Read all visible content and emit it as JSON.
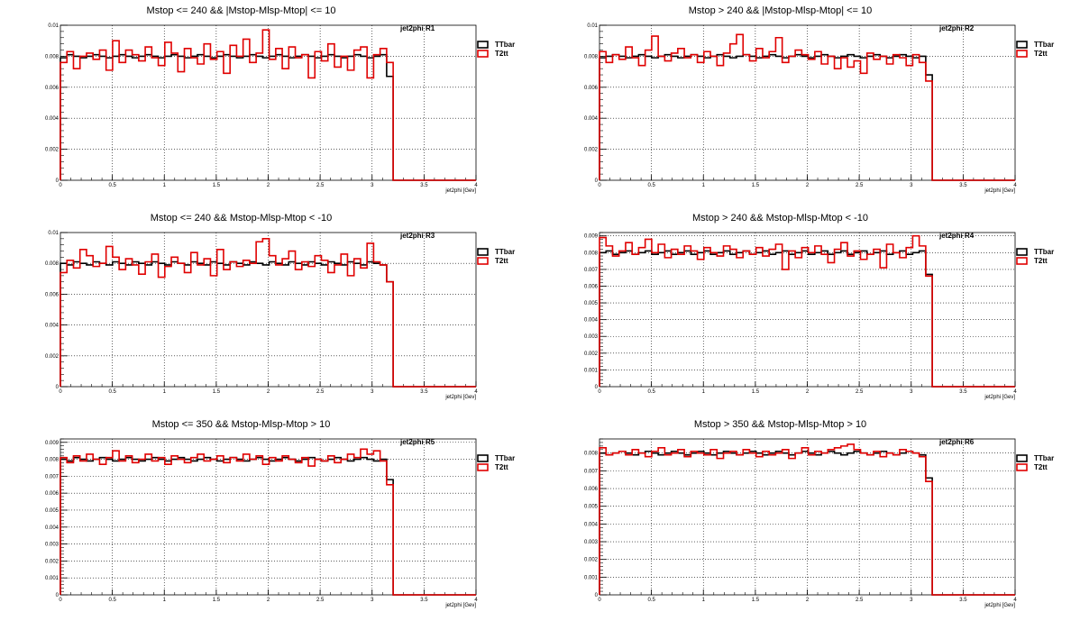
{
  "chart_data": [
    {
      "type": "line",
      "title": "Mstop <= 240 && |Mstop-Mlsp-Mtop| <= 10",
      "stat_label": "jet2phi  R1",
      "xlabel": "jet2phi [Gev]",
      "xlim": [
        0,
        4
      ],
      "ylim": [
        0,
        0.01
      ],
      "x_ticks": [
        "0",
        "0.5",
        "1",
        "1.5",
        "2",
        "2.5",
        "3",
        "3.5",
        "4"
      ],
      "y_ticks": [
        "0",
        "0.002",
        "0.004",
        "0.006",
        "0.008",
        "0.01"
      ],
      "bin_width": 0.0628,
      "grid": true,
      "legend_position": "top-right",
      "series": [
        {
          "name": "TTbar",
          "color": "#000000",
          "values": [
            0.0079,
            0.0081,
            0.008,
            0.0079,
            0.008,
            0.0081,
            0.008,
            0.0079,
            0.008,
            0.0081,
            0.008,
            0.0079,
            0.008,
            0.0081,
            0.008,
            0.0079,
            0.008,
            0.0081,
            0.008,
            0.0079,
            0.008,
            0.0081,
            0.008,
            0.0079,
            0.008,
            0.0081,
            0.008,
            0.0079,
            0.008,
            0.0081,
            0.008,
            0.0079,
            0.008,
            0.0081,
            0.008,
            0.0079,
            0.008,
            0.0081,
            0.008,
            0.0079,
            0.008,
            0.0081,
            0.008,
            0.0079,
            0.008,
            0.0081,
            0.008,
            0.0079,
            0.008,
            0.0081,
            0.0067
          ]
        },
        {
          "name": "T2tt",
          "color": "#e00000",
          "values": [
            0.0076,
            0.0083,
            0.0072,
            0.008,
            0.0082,
            0.0078,
            0.0084,
            0.0071,
            0.009,
            0.0076,
            0.0084,
            0.0081,
            0.0077,
            0.0086,
            0.0079,
            0.0074,
            0.0089,
            0.0082,
            0.007,
            0.0085,
            0.0079,
            0.0075,
            0.0088,
            0.0078,
            0.0083,
            0.0069,
            0.0087,
            0.008,
            0.0091,
            0.0076,
            0.0082,
            0.0097,
            0.0078,
            0.0085,
            0.0072,
            0.0086,
            0.0079,
            0.0081,
            0.0066,
            0.0083,
            0.0077,
            0.0088,
            0.0073,
            0.008,
            0.0071,
            0.0084,
            0.0086,
            0.0066,
            0.0081,
            0.0085,
            0.0076
          ]
        }
      ]
    },
    {
      "type": "line",
      "title": "Mstop > 240 && |Mstop-Mlsp-Mtop| <= 10",
      "stat_label": "jet2phi  R2",
      "xlabel": "jet2phi [Gev]",
      "xlim": [
        0,
        4
      ],
      "ylim": [
        0,
        0.01
      ],
      "x_ticks": [
        "0",
        "0.5",
        "1",
        "1.5",
        "2",
        "2.5",
        "3",
        "3.5",
        "4"
      ],
      "y_ticks": [
        "0",
        "0.002",
        "0.004",
        "0.006",
        "0.008",
        "0.01"
      ],
      "bin_width": 0.0628,
      "grid": true,
      "legend_position": "top-right",
      "series": [
        {
          "name": "TTbar",
          "color": "#000000",
          "values": [
            0.0079,
            0.008,
            0.0081,
            0.008,
            0.0079,
            0.008,
            0.0081,
            0.008,
            0.0079,
            0.008,
            0.0081,
            0.008,
            0.0079,
            0.008,
            0.0081,
            0.008,
            0.0079,
            0.008,
            0.0081,
            0.008,
            0.0079,
            0.008,
            0.0081,
            0.008,
            0.0079,
            0.008,
            0.0081,
            0.008,
            0.0079,
            0.008,
            0.0081,
            0.008,
            0.0079,
            0.008,
            0.0081,
            0.008,
            0.0079,
            0.008,
            0.0081,
            0.008,
            0.0079,
            0.008,
            0.0081,
            0.008,
            0.0079,
            0.008,
            0.0081,
            0.008,
            0.0079,
            0.008,
            0.0068
          ]
        },
        {
          "name": "T2tt",
          "color": "#e00000",
          "values": [
            0.0083,
            0.0076,
            0.0081,
            0.0078,
            0.0086,
            0.0079,
            0.0074,
            0.0084,
            0.0093,
            0.008,
            0.0077,
            0.0082,
            0.0085,
            0.0079,
            0.0081,
            0.0076,
            0.0083,
            0.008,
            0.0074,
            0.0082,
            0.0088,
            0.0094,
            0.0081,
            0.0077,
            0.0085,
            0.0079,
            0.0083,
            0.0092,
            0.0076,
            0.008,
            0.0084,
            0.0081,
            0.0078,
            0.0083,
            0.0075,
            0.008,
            0.0072,
            0.0079,
            0.0073,
            0.0077,
            0.0069,
            0.0082,
            0.0078,
            0.008,
            0.0075,
            0.0081,
            0.0079,
            0.0074,
            0.0081,
            0.0076,
            0.0064
          ]
        }
      ]
    },
    {
      "type": "line",
      "title": "Mstop <= 240 && Mstop-Mlsp-Mtop < -10",
      "stat_label": "jet2phi  R3",
      "xlabel": "jet2phi [Gev]",
      "xlim": [
        0,
        4
      ],
      "ylim": [
        0,
        0.01
      ],
      "x_ticks": [
        "0",
        "0.5",
        "1",
        "1.5",
        "2",
        "2.5",
        "3",
        "3.5",
        "4"
      ],
      "y_ticks": [
        "0",
        "0.002",
        "0.004",
        "0.006",
        "0.008",
        "0.01"
      ],
      "bin_width": 0.0628,
      "grid": true,
      "legend_position": "top-right",
      "series": [
        {
          "name": "TTbar",
          "color": "#000000",
          "values": [
            0.008,
            0.0079,
            0.0081,
            0.008,
            0.0079,
            0.0081,
            0.008,
            0.0079,
            0.0081,
            0.008,
            0.0079,
            0.0081,
            0.008,
            0.0079,
            0.0081,
            0.008,
            0.0079,
            0.0081,
            0.008,
            0.0079,
            0.0081,
            0.008,
            0.0079,
            0.0081,
            0.008,
            0.0079,
            0.0081,
            0.008,
            0.0079,
            0.0081,
            0.008,
            0.0079,
            0.0081,
            0.008,
            0.0079,
            0.0081,
            0.008,
            0.0079,
            0.0081,
            0.008,
            0.0079,
            0.0081,
            0.008,
            0.0079,
            0.0081,
            0.008,
            0.0079,
            0.0081,
            0.008,
            0.0079,
            0.0068
          ]
        },
        {
          "name": "T2tt",
          "color": "#e00000",
          "values": [
            0.0074,
            0.0082,
            0.0077,
            0.0089,
            0.0085,
            0.0078,
            0.008,
            0.0091,
            0.0084,
            0.0076,
            0.0083,
            0.0079,
            0.0073,
            0.0081,
            0.0086,
            0.0071,
            0.0078,
            0.0084,
            0.008,
            0.0074,
            0.0087,
            0.0079,
            0.0083,
            0.0072,
            0.0089,
            0.0076,
            0.0081,
            0.0078,
            0.0082,
            0.008,
            0.0094,
            0.0096,
            0.0085,
            0.0079,
            0.0083,
            0.0088,
            0.0076,
            0.0081,
            0.0078,
            0.0085,
            0.0082,
            0.0074,
            0.0079,
            0.0086,
            0.0072,
            0.0083,
            0.0077,
            0.0093,
            0.0081,
            0.0079,
            0.0068
          ]
        }
      ]
    },
    {
      "type": "line",
      "title": "Mstop > 240 && Mstop-Mlsp-Mtop < -10",
      "stat_label": "jet2phi  R4",
      "xlabel": "jet2phi [Gev]",
      "xlim": [
        0,
        4
      ],
      "ylim": [
        0,
        0.0092
      ],
      "x_ticks": [
        "0",
        "0.5",
        "1",
        "1.5",
        "2",
        "2.5",
        "3",
        "3.5",
        "4"
      ],
      "y_ticks": [
        "0",
        "0.001",
        "0.002",
        "0.003",
        "0.004",
        "0.005",
        "0.006",
        "0.007",
        "0.008",
        "0.009"
      ],
      "bin_width": 0.0628,
      "grid": true,
      "legend_position": "top-right",
      "series": [
        {
          "name": "TTbar",
          "color": "#000000",
          "values": [
            0.008,
            0.0081,
            0.0079,
            0.008,
            0.0081,
            0.0079,
            0.008,
            0.0081,
            0.0079,
            0.008,
            0.0081,
            0.0079,
            0.008,
            0.0081,
            0.0079,
            0.008,
            0.0081,
            0.0079,
            0.008,
            0.0081,
            0.0079,
            0.008,
            0.0081,
            0.0079,
            0.008,
            0.0081,
            0.0079,
            0.008,
            0.0081,
            0.0079,
            0.008,
            0.0081,
            0.0079,
            0.008,
            0.0081,
            0.0079,
            0.008,
            0.0081,
            0.0079,
            0.008,
            0.0081,
            0.0079,
            0.008,
            0.0081,
            0.0079,
            0.008,
            0.0081,
            0.0079,
            0.008,
            0.0081,
            0.0067
          ]
        },
        {
          "name": "T2tt",
          "color": "#e00000",
          "values": [
            0.0089,
            0.0084,
            0.0078,
            0.0081,
            0.0086,
            0.0079,
            0.0083,
            0.0088,
            0.008,
            0.0085,
            0.0077,
            0.0082,
            0.0079,
            0.0084,
            0.0081,
            0.0076,
            0.0083,
            0.008,
            0.0078,
            0.0084,
            0.0082,
            0.0077,
            0.0081,
            0.0079,
            0.0083,
            0.0078,
            0.0082,
            0.0085,
            0.007,
            0.0081,
            0.0077,
            0.0083,
            0.008,
            0.0084,
            0.0079,
            0.0074,
            0.0082,
            0.0086,
            0.0078,
            0.0081,
            0.0076,
            0.0079,
            0.0082,
            0.0071,
            0.0085,
            0.008,
            0.0077,
            0.0083,
            0.009,
            0.0084,
            0.0066
          ]
        }
      ]
    },
    {
      "type": "line",
      "title": "Mstop <= 350 && Mstop-Mlsp-Mtop > 10",
      "stat_label": "jet2phi  R5",
      "xlabel": "jet2phi [Gev]",
      "xlim": [
        0,
        4
      ],
      "ylim": [
        0,
        0.0092
      ],
      "x_ticks": [
        "0",
        "0.5",
        "1",
        "1.5",
        "2",
        "2.5",
        "3",
        "3.5",
        "4"
      ],
      "y_ticks": [
        "0",
        "0.001",
        "0.002",
        "0.003",
        "0.004",
        "0.005",
        "0.006",
        "0.007",
        "0.008",
        "0.009"
      ],
      "bin_width": 0.0628,
      "grid": true,
      "legend_position": "top-right",
      "series": [
        {
          "name": "TTbar",
          "color": "#000000",
          "values": [
            0.008,
            0.0079,
            0.0081,
            0.008,
            0.0079,
            0.008,
            0.0081,
            0.008,
            0.0079,
            0.008,
            0.0081,
            0.008,
            0.0079,
            0.008,
            0.0081,
            0.008,
            0.0079,
            0.008,
            0.0081,
            0.008,
            0.0079,
            0.008,
            0.0081,
            0.008,
            0.0079,
            0.008,
            0.0081,
            0.008,
            0.0079,
            0.008,
            0.0081,
            0.008,
            0.0079,
            0.008,
            0.0081,
            0.008,
            0.0079,
            0.008,
            0.0081,
            0.008,
            0.0079,
            0.008,
            0.0081,
            0.008,
            0.0079,
            0.008,
            0.0081,
            0.008,
            0.0079,
            0.008,
            0.0068
          ]
        },
        {
          "name": "T2tt",
          "color": "#e00000",
          "values": [
            0.0081,
            0.0078,
            0.0082,
            0.0079,
            0.0083,
            0.008,
            0.0077,
            0.0081,
            0.0085,
            0.0079,
            0.0082,
            0.0078,
            0.008,
            0.0083,
            0.0079,
            0.0081,
            0.0077,
            0.0082,
            0.008,
            0.0078,
            0.0081,
            0.0083,
            0.0079,
            0.008,
            0.0082,
            0.0078,
            0.0081,
            0.0079,
            0.0083,
            0.008,
            0.0082,
            0.0077,
            0.0081,
            0.0079,
            0.0082,
            0.008,
            0.0078,
            0.0081,
            0.0076,
            0.008,
            0.0079,
            0.0082,
            0.0078,
            0.008,
            0.0083,
            0.0081,
            0.0086,
            0.0083,
            0.0085,
            0.0079,
            0.0065
          ]
        }
      ]
    },
    {
      "type": "line",
      "title": "Mstop > 350 && Mstop-Mlsp-Mtop > 10",
      "stat_label": "jet2phi  R6",
      "xlabel": "jet2phi [Gev]",
      "xlim": [
        0,
        4
      ],
      "ylim": [
        0,
        0.0088
      ],
      "x_ticks": [
        "0",
        "0.5",
        "1",
        "1.5",
        "2",
        "2.5",
        "3",
        "3.5",
        "4"
      ],
      "y_ticks": [
        "0",
        "0.001",
        "0.002",
        "0.003",
        "0.004",
        "0.005",
        "0.006",
        "0.007",
        "0.008"
      ],
      "bin_width": 0.0628,
      "grid": true,
      "legend_position": "top-right",
      "series": [
        {
          "name": "TTbar",
          "color": "#000000",
          "values": [
            0.008,
            0.0079,
            0.008,
            0.0081,
            0.008,
            0.0079,
            0.008,
            0.0081,
            0.008,
            0.0079,
            0.008,
            0.0081,
            0.008,
            0.0079,
            0.008,
            0.0081,
            0.008,
            0.0079,
            0.008,
            0.0081,
            0.008,
            0.0079,
            0.008,
            0.0081,
            0.008,
            0.0079,
            0.008,
            0.0081,
            0.008,
            0.0079,
            0.008,
            0.0081,
            0.008,
            0.0079,
            0.008,
            0.0081,
            0.008,
            0.0079,
            0.008,
            0.0081,
            0.008,
            0.0079,
            0.008,
            0.0081,
            0.008,
            0.0079,
            0.008,
            0.0081,
            0.008,
            0.0079,
            0.0066
          ]
        },
        {
          "name": "T2tt",
          "color": "#e00000",
          "values": [
            0.0083,
            0.0079,
            0.008,
            0.0081,
            0.0079,
            0.0082,
            0.008,
            0.0078,
            0.0081,
            0.0083,
            0.0079,
            0.008,
            0.0082,
            0.0078,
            0.0081,
            0.008,
            0.0079,
            0.0082,
            0.0077,
            0.008,
            0.0081,
            0.0079,
            0.0082,
            0.008,
            0.0078,
            0.0081,
            0.0079,
            0.008,
            0.0082,
            0.0077,
            0.008,
            0.0083,
            0.0079,
            0.0081,
            0.008,
            0.0082,
            0.0083,
            0.0084,
            0.0085,
            0.0082,
            0.008,
            0.0079,
            0.0081,
            0.0078,
            0.008,
            0.0079,
            0.0082,
            0.0081,
            0.008,
            0.0078,
            0.0064
          ]
        }
      ]
    }
  ]
}
